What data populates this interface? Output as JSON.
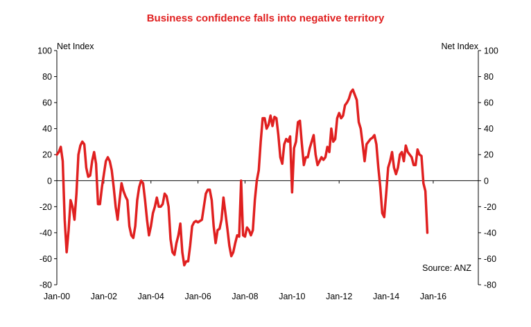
{
  "chart_data": {
    "type": "line",
    "title": "Business confidence falls into negative territory",
    "ylabel_left": "Net Index",
    "ylabel_right": "Net Index",
    "source": "Source: ANZ",
    "ylim": [
      -80,
      100
    ],
    "yticks": [
      -80,
      -60,
      -40,
      -20,
      0,
      20,
      40,
      60,
      80,
      100
    ],
    "xrange": [
      "2000-01",
      "2017-12"
    ],
    "xticks": [
      {
        "label": "Jan-00",
        "date": "2000-01"
      },
      {
        "label": "Jan-02",
        "date": "2002-01"
      },
      {
        "label": "Jan-04",
        "date": "2004-01"
      },
      {
        "label": "Jan-06",
        "date": "2006-01"
      },
      {
        "label": "Jan-08",
        "date": "2008-01"
      },
      {
        "label": "Jan-10",
        "date": "2010-01"
      },
      {
        "label": "Jan-12",
        "date": "2012-01"
      },
      {
        "label": "Jan-14",
        "date": "2014-01"
      },
      {
        "label": "Jan-16",
        "date": "2016-01"
      }
    ],
    "grid": false,
    "color": "#e02020",
    "series": [
      {
        "points": [
          [
            "2000-01",
            20
          ],
          [
            "2000-02",
            22
          ],
          [
            "2000-03",
            26
          ],
          [
            "2000-04",
            15
          ],
          [
            "2000-05",
            -30
          ],
          [
            "2000-06",
            -55
          ],
          [
            "2000-07",
            -38
          ],
          [
            "2000-08",
            -15
          ],
          [
            "2000-09",
            -20
          ],
          [
            "2000-10",
            -30
          ],
          [
            "2000-11",
            -10
          ],
          [
            "2000-12",
            20
          ],
          [
            "2001-01",
            27
          ],
          [
            "2001-02",
            30
          ],
          [
            "2001-03",
            28
          ],
          [
            "2001-04",
            10
          ],
          [
            "2001-05",
            3
          ],
          [
            "2001-06",
            4
          ],
          [
            "2001-07",
            15
          ],
          [
            "2001-08",
            22
          ],
          [
            "2001-09",
            13
          ],
          [
            "2001-10",
            -18
          ],
          [
            "2001-11",
            -18
          ],
          [
            "2001-12",
            -5
          ],
          [
            "2002-01",
            5
          ],
          [
            "2002-02",
            15
          ],
          [
            "2002-03",
            18
          ],
          [
            "2002-04",
            15
          ],
          [
            "2002-05",
            8
          ],
          [
            "2002-06",
            -5
          ],
          [
            "2002-07",
            -20
          ],
          [
            "2002-08",
            -30
          ],
          [
            "2002-09",
            -15
          ],
          [
            "2002-10",
            -2
          ],
          [
            "2002-11",
            -8
          ],
          [
            "2002-12",
            -12
          ],
          [
            "2003-01",
            -15
          ],
          [
            "2003-02",
            -35
          ],
          [
            "2003-03",
            -42
          ],
          [
            "2003-04",
            -44
          ],
          [
            "2003-05",
            -35
          ],
          [
            "2003-06",
            -15
          ],
          [
            "2003-07",
            -5
          ],
          [
            "2003-08",
            0
          ],
          [
            "2003-09",
            -2
          ],
          [
            "2003-10",
            -15
          ],
          [
            "2003-11",
            -30
          ],
          [
            "2003-12",
            -42
          ],
          [
            "2004-01",
            -35
          ],
          [
            "2004-02",
            -25
          ],
          [
            "2004-03",
            -20
          ],
          [
            "2004-04",
            -13
          ],
          [
            "2004-05",
            -20
          ],
          [
            "2004-06",
            -20
          ],
          [
            "2004-07",
            -18
          ],
          [
            "2004-08",
            -10
          ],
          [
            "2004-09",
            -12
          ],
          [
            "2004-10",
            -20
          ],
          [
            "2004-11",
            -45
          ],
          [
            "2004-12",
            -55
          ],
          [
            "2005-01",
            -57
          ],
          [
            "2005-02",
            -48
          ],
          [
            "2005-03",
            -42
          ],
          [
            "2005-04",
            -33
          ],
          [
            "2005-05",
            -55
          ],
          [
            "2005-06",
            -65
          ],
          [
            "2005-07",
            -62
          ],
          [
            "2005-08",
            -62
          ],
          [
            "2005-09",
            -50
          ],
          [
            "2005-10",
            -35
          ],
          [
            "2005-11",
            -32
          ],
          [
            "2005-12",
            -31
          ],
          [
            "2006-01",
            -32
          ],
          [
            "2006-02",
            -31
          ],
          [
            "2006-03",
            -30
          ],
          [
            "2006-04",
            -20
          ],
          [
            "2006-05",
            -10
          ],
          [
            "2006-06",
            -7
          ],
          [
            "2006-07",
            -7
          ],
          [
            "2006-08",
            -15
          ],
          [
            "2006-09",
            -35
          ],
          [
            "2006-10",
            -48
          ],
          [
            "2006-11",
            -38
          ],
          [
            "2006-12",
            -37
          ],
          [
            "2007-01",
            -30
          ],
          [
            "2007-02",
            -13
          ],
          [
            "2007-03",
            -25
          ],
          [
            "2007-04",
            -37
          ],
          [
            "2007-05",
            -50
          ],
          [
            "2007-06",
            -58
          ],
          [
            "2007-07",
            -55
          ],
          [
            "2007-08",
            -48
          ],
          [
            "2007-09",
            -42
          ],
          [
            "2007-10",
            -43
          ],
          [
            "2007-11",
            0
          ],
          [
            "2007-12",
            -42
          ],
          [
            "2008-01",
            -43
          ],
          [
            "2008-02",
            -36
          ],
          [
            "2008-03",
            -38
          ],
          [
            "2008-04",
            -42
          ],
          [
            "2008-05",
            -38
          ],
          [
            "2008-06",
            -15
          ],
          [
            "2008-07",
            0
          ],
          [
            "2008-08",
            8
          ],
          [
            "2008-09",
            30
          ],
          [
            "2008-10",
            48
          ],
          [
            "2008-11",
            48
          ],
          [
            "2008-12",
            40
          ],
          [
            "2009-01",
            43
          ],
          [
            "2009-02",
            50
          ],
          [
            "2009-03",
            42
          ],
          [
            "2009-04",
            49
          ],
          [
            "2009-05",
            48
          ],
          [
            "2009-06",
            35
          ],
          [
            "2009-07",
            18
          ],
          [
            "2009-08",
            13
          ],
          [
            "2009-09",
            28
          ],
          [
            "2009-10",
            32
          ],
          [
            "2009-11",
            30
          ],
          [
            "2009-12",
            34
          ],
          [
            "2010-01",
            -9
          ],
          [
            "2010-02",
            25
          ],
          [
            "2010-03",
            30
          ],
          [
            "2010-04",
            45
          ],
          [
            "2010-05",
            46
          ],
          [
            "2010-06",
            28
          ],
          [
            "2010-07",
            12
          ],
          [
            "2010-08",
            18
          ],
          [
            "2010-09",
            18
          ],
          [
            "2010-10",
            25
          ],
          [
            "2010-11",
            30
          ],
          [
            "2010-12",
            35
          ],
          [
            "2011-01",
            20
          ],
          [
            "2011-02",
            12
          ],
          [
            "2011-03",
            15
          ],
          [
            "2011-04",
            18
          ],
          [
            "2011-05",
            16
          ],
          [
            "2011-06",
            18
          ],
          [
            "2011-07",
            26
          ],
          [
            "2011-08",
            22
          ],
          [
            "2011-09",
            40
          ],
          [
            "2011-10",
            30
          ],
          [
            "2011-11",
            32
          ],
          [
            "2011-12",
            48
          ],
          [
            "2012-01",
            52
          ],
          [
            "2012-02",
            48
          ],
          [
            "2012-03",
            50
          ],
          [
            "2012-04",
            58
          ],
          [
            "2012-05",
            60
          ],
          [
            "2012-06",
            63
          ],
          [
            "2012-07",
            68
          ],
          [
            "2012-08",
            70
          ],
          [
            "2012-09",
            66
          ],
          [
            "2012-10",
            62
          ],
          [
            "2012-11",
            45
          ],
          [
            "2012-12",
            40
          ],
          [
            "2013-01",
            28
          ],
          [
            "2013-02",
            15
          ],
          [
            "2013-03",
            28
          ],
          [
            "2013-04",
            30
          ],
          [
            "2013-05",
            32
          ],
          [
            "2013-06",
            33
          ],
          [
            "2013-07",
            35
          ],
          [
            "2013-08",
            28
          ],
          [
            "2013-09",
            10
          ],
          [
            "2013-10",
            -5
          ],
          [
            "2013-11",
            -25
          ],
          [
            "2013-12",
            -28
          ],
          [
            "2014-01",
            -10
          ],
          [
            "2014-02",
            10
          ],
          [
            "2014-03",
            15
          ],
          [
            "2014-04",
            22
          ],
          [
            "2014-05",
            10
          ],
          [
            "2014-06",
            5
          ],
          [
            "2014-07",
            10
          ],
          [
            "2014-08",
            20
          ],
          [
            "2014-09",
            22
          ],
          [
            "2014-10",
            15
          ],
          [
            "2014-11",
            27
          ],
          [
            "2014-12",
            22
          ],
          [
            "2015-01",
            20
          ],
          [
            "2015-02",
            18
          ],
          [
            "2015-03",
            12
          ],
          [
            "2015-04",
            12
          ],
          [
            "2015-05",
            24
          ],
          [
            "2015-06",
            20
          ],
          [
            "2015-07",
            19
          ],
          [
            "2015-08",
            -2
          ],
          [
            "2015-09",
            -8
          ],
          [
            "2015-10",
            -40
          ]
        ]
      }
    ]
  }
}
